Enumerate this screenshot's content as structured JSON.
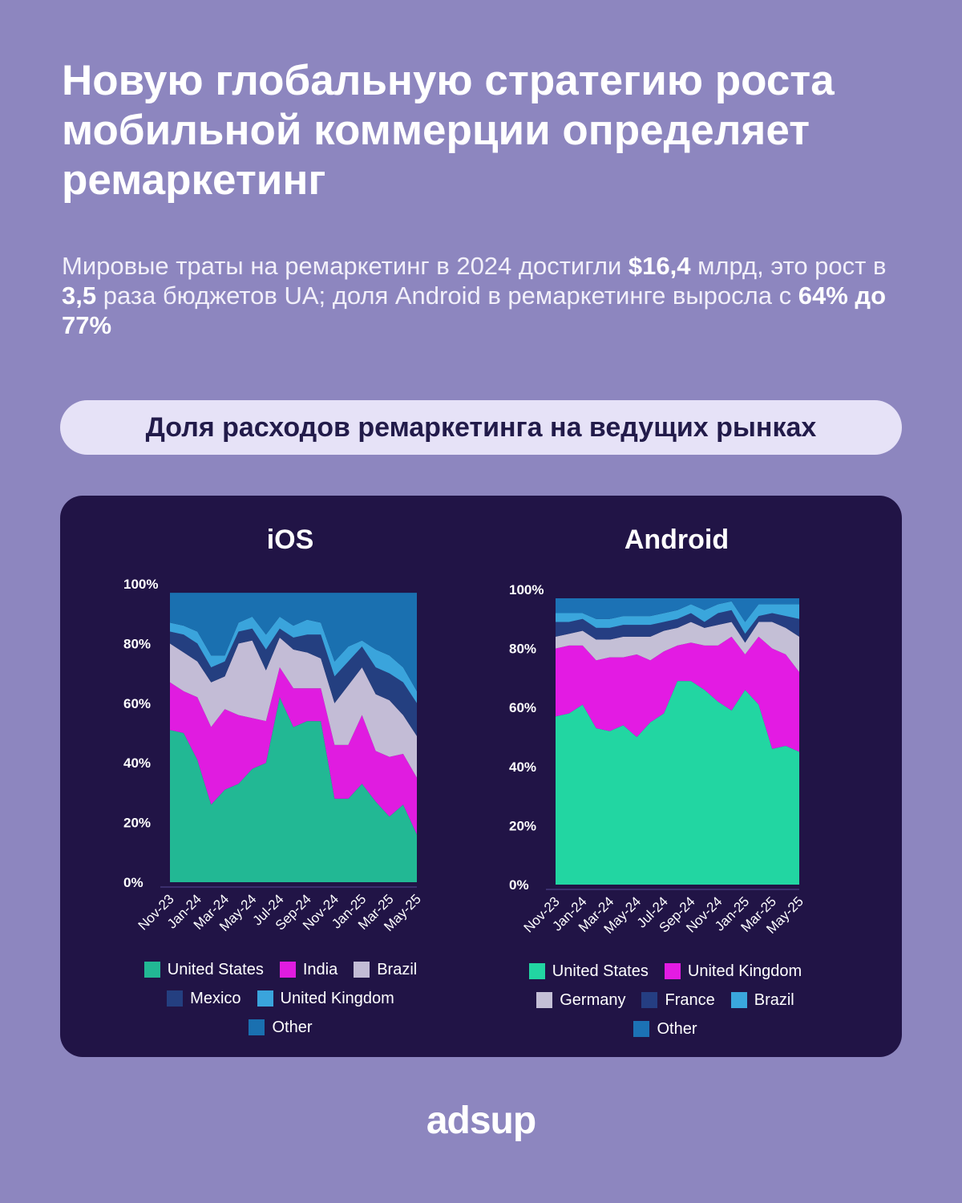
{
  "header": {
    "title": "Новую глобальную стратегию роста мобильной коммерции определяет ремаркетинг",
    "subtitle": [
      {
        "text": "Мировые траты на ремаркетинг в 2024 достигли ",
        "bold": false
      },
      {
        "text": "$16,4",
        "bold": true
      },
      {
        "text": " млрд, это рост в ",
        "bold": false
      },
      {
        "text": "3,5",
        "bold": true
      },
      {
        "text": " раза бюджетов UA; доля Android в ремаркетинге выросла с ",
        "bold": false
      },
      {
        "text": "64% до 77%",
        "bold": true
      }
    ],
    "section_title": "Доля расходов ремаркетинга на ведущих рынках"
  },
  "chart_data": [
    {
      "type": "area",
      "stacked": true,
      "title": "iOS",
      "categories": [
        "Nov-23",
        null,
        "Jan-24",
        null,
        "Mar-24",
        null,
        "May-24",
        null,
        "Jul-24",
        null,
        "Sep-24",
        null,
        "Nov-24",
        null,
        "Jan-25",
        null,
        "Mar-25",
        null,
        "May-25"
      ],
      "series": [
        {
          "name": "United States",
          "color": "#22b894",
          "values": [
            51,
            50,
            41,
            26,
            31,
            33,
            38,
            40,
            62,
            52,
            54,
            54,
            28,
            28,
            33,
            27,
            22,
            26,
            16
          ]
        },
        {
          "name": "India",
          "color": "#e01ce0",
          "values": [
            16,
            14,
            21,
            26,
            27,
            23,
            17,
            14,
            10,
            13,
            11,
            11,
            18,
            18,
            23,
            17,
            20,
            17,
            19
          ]
        },
        {
          "name": "Brazil",
          "color": "#c3bcd6",
          "values": [
            13,
            13,
            12,
            15,
            11,
            24,
            26,
            17,
            10,
            13,
            12,
            10,
            14,
            20,
            16,
            19,
            19,
            13,
            14
          ]
        },
        {
          "name": "Mexico",
          "color": "#243f80",
          "values": [
            4,
            6,
            6,
            5,
            5,
            4,
            4,
            7,
            3,
            4,
            6,
            8,
            9,
            8,
            7,
            9,
            9,
            11,
            11
          ]
        },
        {
          "name": "United Kingdom",
          "color": "#3aa4dc",
          "values": [
            3,
            3,
            4,
            4,
            2,
            3,
            4,
            5,
            4,
            4,
            5,
            4,
            5,
            5,
            2,
            6,
            6,
            5,
            4
          ]
        },
        {
          "name": "Other",
          "color": "#1a70b0",
          "values": [
            10,
            11,
            13,
            21,
            21,
            10,
            8,
            14,
            8,
            11,
            9,
            10,
            23,
            18,
            16,
            19,
            21,
            25,
            33
          ]
        }
      ],
      "ylim": [
        0,
        100
      ],
      "yticks": [
        {
          "value": 0,
          "label": "0%"
        },
        {
          "value": 20,
          "label": "20%"
        },
        {
          "value": 40,
          "label": "40%"
        },
        {
          "value": 60,
          "label": "60%"
        },
        {
          "value": 80,
          "label": "80%"
        },
        {
          "value": 100,
          "label": "100%"
        }
      ]
    },
    {
      "type": "area",
      "stacked": true,
      "title": "Android",
      "categories": [
        "Nov-23",
        null,
        "Jan-24",
        null,
        "Mar-24",
        null,
        "May-24",
        null,
        "Jul-24",
        null,
        "Sep-24",
        null,
        "Nov-24",
        null,
        "Jan-25",
        null,
        "Mar-25",
        null,
        "May-25"
      ],
      "series": [
        {
          "name": "United States",
          "color": "#22d6a2",
          "values": [
            57,
            58,
            61,
            53,
            52,
            54,
            50,
            55,
            58,
            69,
            69,
            66,
            62,
            59,
            66,
            61,
            46,
            47,
            45
          ]
        },
        {
          "name": "United Kingdom",
          "color": "#e31be3",
          "values": [
            23,
            23,
            20,
            23,
            25,
            23,
            28,
            21,
            21,
            12,
            13,
            15,
            19,
            25,
            12,
            23,
            34,
            31,
            27
          ]
        },
        {
          "name": "Germany",
          "color": "#c4bfd6",
          "values": [
            4,
            4,
            5,
            7,
            6,
            7,
            6,
            8,
            7,
            6,
            7,
            6,
            7,
            5,
            4,
            5,
            9,
            9,
            12
          ]
        },
        {
          "name": "France",
          "color": "#253e82",
          "values": [
            5,
            4,
            4,
            4,
            4,
            4,
            4,
            4,
            3,
            3,
            3,
            2,
            4,
            4,
            3,
            2,
            3,
            4,
            6
          ]
        },
        {
          "name": "Brazil",
          "color": "#3aa6dc",
          "values": [
            3,
            3,
            2,
            3,
            3,
            3,
            3,
            3,
            3,
            3,
            3,
            4,
            3,
            3,
            4,
            4,
            3,
            4,
            5
          ]
        },
        {
          "name": "Other",
          "color": "#1c72b5",
          "values": [
            5,
            5,
            5,
            7,
            7,
            6,
            6,
            6,
            5,
            4,
            2,
            4,
            2,
            1,
            8,
            2,
            2,
            2,
            2
          ]
        }
      ],
      "ylim": [
        0,
        100
      ],
      "yticks": [
        {
          "value": 0,
          "label": "0%"
        },
        {
          "value": 20,
          "label": "20%"
        },
        {
          "value": 40,
          "label": "40%"
        },
        {
          "value": 60,
          "label": "60%"
        },
        {
          "value": 80,
          "label": "80%"
        },
        {
          "value": 100,
          "label": "100%"
        }
      ]
    }
  ],
  "footer": {
    "logo": "adsup"
  }
}
